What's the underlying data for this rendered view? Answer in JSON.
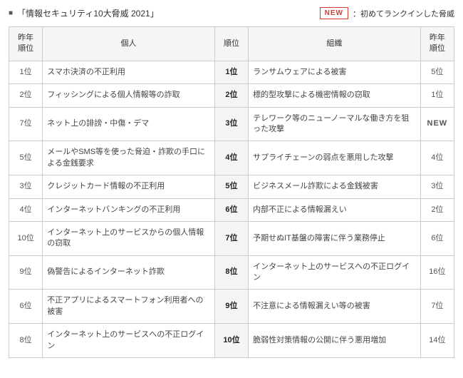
{
  "header": {
    "title": "「情報セキュリティ10大脅威 2021」",
    "new_badge": "NEW",
    "legend": "：初めてランクインした脅威"
  },
  "columns": {
    "prev_rank": "昨年\n順位",
    "individual": "個人",
    "rank": "順位",
    "organization": "組織",
    "prev_rank_org": "昨年\n順位"
  },
  "rows": [
    {
      "prev_ind": "1位",
      "individual": "スマホ決済の不正利用",
      "rank": "1位",
      "organization": "ランサムウェアによる被害",
      "prev_org": "5位"
    },
    {
      "prev_ind": "2位",
      "individual": "フィッシングによる個人情報等の詐取",
      "rank": "2位",
      "organization": "標的型攻撃による機密情報の窃取",
      "prev_org": "1位"
    },
    {
      "prev_ind": "7位",
      "individual": "ネット上の誹謗・中傷・デマ",
      "rank": "3位",
      "organization": "テレワーク等のニューノーマルな働き方を狙った攻撃",
      "prev_org": "NEW",
      "org_new": true
    },
    {
      "prev_ind": "5位",
      "individual": "メールやSMS等を使った脅迫・詐欺の手口による金銭要求",
      "rank": "4位",
      "organization": "サプライチェーンの弱点を悪用した攻撃",
      "prev_org": "4位"
    },
    {
      "prev_ind": "3位",
      "individual": "クレジットカード情報の不正利用",
      "rank": "5位",
      "organization": "ビジネスメール詐欺による金銭被害",
      "prev_org": "3位"
    },
    {
      "prev_ind": "4位",
      "individual": "インターネットバンキングの不正利用",
      "rank": "6位",
      "organization": "内部不正による情報漏えい",
      "prev_org": "2位"
    },
    {
      "prev_ind": "10位",
      "individual": "インターネット上のサービスからの個人情報の窃取",
      "rank": "7位",
      "organization": "予期せぬIT基盤の障害に伴う業務停止",
      "prev_org": "6位"
    },
    {
      "prev_ind": "9位",
      "individual": "偽警告によるインターネット詐欺",
      "rank": "8位",
      "organization": "インターネット上のサービスへの不正ログイン",
      "prev_org": "16位"
    },
    {
      "prev_ind": "6位",
      "individual": "不正アプリによるスマートフォン利用者への被害",
      "rank": "9位",
      "organization": "不注意による情報漏えい等の被害",
      "prev_org": "7位"
    },
    {
      "prev_ind": "8位",
      "individual": "インターネット上のサービスへの不正ログイン",
      "rank": "10位",
      "organization": "脆弱性対策情報の公開に伴う悪用増加",
      "prev_org": "14位"
    }
  ]
}
